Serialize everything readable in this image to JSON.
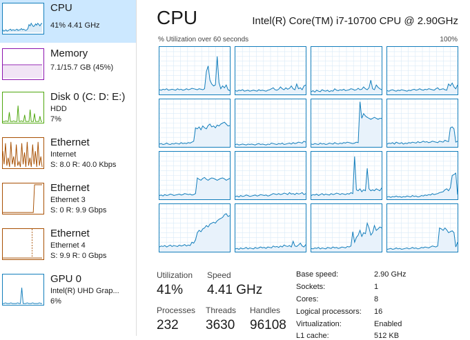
{
  "colors": {
    "selected_bg": "#cce8ff",
    "cpu": "#117dbb",
    "memory": "#8b12ae",
    "disk": "#4da60c",
    "network": "#a74f01",
    "gpu": "#117dbb"
  },
  "sidebar": {
    "items": [
      {
        "title": "CPU",
        "sub1": "41% 4.41 GHz",
        "sub2": "",
        "sub3": "",
        "selected": true,
        "graph": "cpu"
      },
      {
        "title": "Memory",
        "sub1": "7.1/15.7 GB (45%)",
        "sub2": "",
        "sub3": "",
        "selected": false,
        "graph": "memory"
      },
      {
        "title": "Disk 0 (C: D: E:)",
        "sub1": "HDD",
        "sub2": "7%",
        "sub3": "",
        "selected": false,
        "graph": "disk"
      },
      {
        "title": "Ethernet",
        "sub1": "Internet",
        "sub2": "S: 8.0 R: 40.0 Kbps",
        "sub3": "",
        "selected": false,
        "graph": "net1"
      },
      {
        "title": "Ethernet",
        "sub1": "Ethernet 3",
        "sub2": "S: 0 R: 9.9 Gbps",
        "sub3": "",
        "selected": false,
        "graph": "net2"
      },
      {
        "title": "Ethernet",
        "sub1": "Ethernet 4",
        "sub2": "S: 9.9 R: 0 Gbps",
        "sub3": "",
        "selected": false,
        "graph": "net3"
      },
      {
        "title": "GPU 0",
        "sub1": "Intel(R) UHD Grap...",
        "sub2": "6%",
        "sub3": "",
        "selected": false,
        "graph": "gpu"
      }
    ]
  },
  "main": {
    "title": "CPU",
    "model": "Intel(R) Core(TM) i7-10700 CPU @ 2.90GHz",
    "util_caption": "% Utilization over 60 seconds",
    "util_max": "100%",
    "cores": [
      {
        "values": [
          10,
          9,
          11,
          10,
          12,
          9,
          10,
          11,
          10,
          9,
          12,
          10,
          11,
          9,
          10,
          12,
          10,
          11,
          13,
          12,
          11,
          10,
          12,
          11,
          10,
          12,
          48,
          60,
          30,
          22,
          18,
          20,
          80,
          25,
          12,
          18,
          14,
          20,
          10,
          8
        ]
      },
      {
        "values": [
          8,
          7,
          9,
          8,
          10,
          7,
          8,
          9,
          7,
          8,
          9,
          8,
          7,
          10,
          8,
          9,
          8,
          7,
          9,
          10,
          12,
          14,
          10,
          9,
          11,
          16,
          12,
          10,
          14,
          11,
          13,
          18,
          12,
          10,
          22,
          12,
          14,
          10,
          18,
          20
        ]
      },
      {
        "values": [
          6,
          8,
          5,
          9,
          7,
          6,
          10,
          8,
          7,
          9,
          6,
          8,
          7,
          12,
          9,
          8,
          10,
          9,
          11,
          8,
          9,
          10,
          12,
          11,
          9,
          10,
          13,
          10,
          11,
          16,
          12,
          10,
          14,
          30,
          12,
          10,
          20,
          15,
          12,
          10
        ]
      },
      {
        "values": [
          8,
          7,
          9,
          10,
          8,
          7,
          9,
          8,
          10,
          9,
          8,
          7,
          9,
          8,
          10,
          11,
          9,
          10,
          12,
          10,
          9,
          11,
          10,
          12,
          11,
          10,
          9,
          12,
          14,
          10,
          11,
          12,
          10,
          9,
          22,
          18,
          24,
          16,
          12,
          20
        ]
      },
      {
        "values": [
          6,
          7,
          5,
          6,
          8,
          6,
          5,
          7,
          6,
          8,
          7,
          6,
          9,
          7,
          8,
          7,
          9,
          8,
          10,
          12,
          40,
          38,
          42,
          36,
          44,
          40,
          38,
          45,
          48,
          42,
          44,
          40,
          46,
          44,
          48,
          50,
          52,
          48,
          44,
          45
        ]
      },
      {
        "values": [
          5,
          6,
          4,
          5,
          6,
          5,
          4,
          6,
          5,
          6,
          5,
          4,
          6,
          7,
          5,
          6,
          5,
          4,
          6,
          5,
          8,
          7,
          6,
          5,
          7,
          6,
          8,
          5,
          6,
          7,
          8,
          6,
          9,
          7,
          8,
          10,
          9,
          8,
          12,
          10
        ]
      },
      {
        "values": [
          6,
          5,
          7,
          6,
          5,
          8,
          6,
          7,
          5,
          6,
          8,
          7,
          6,
          9,
          7,
          6,
          8,
          7,
          9,
          8,
          10,
          9,
          8,
          7,
          8,
          10,
          9,
          95,
          60,
          70,
          65,
          62,
          60,
          58,
          60,
          62,
          60,
          58,
          60,
          60
        ]
      },
      {
        "values": [
          6,
          8,
          7,
          9,
          6,
          10,
          8,
          7,
          9,
          6,
          8,
          7,
          9,
          8,
          10,
          9,
          8,
          11,
          9,
          10,
          12,
          10,
          11,
          9,
          10,
          12,
          11,
          10,
          9,
          12,
          11,
          10,
          14,
          12,
          11,
          40,
          42,
          38,
          10,
          12
        ]
      },
      {
        "values": [
          8,
          9,
          7,
          10,
          8,
          9,
          11,
          10,
          8,
          9,
          10,
          11,
          9,
          10,
          12,
          11,
          10,
          11,
          9,
          10,
          12,
          45,
          42,
          40,
          44,
          46,
          42,
          40,
          43,
          45,
          44,
          42,
          40,
          42,
          44,
          45,
          43,
          40,
          42,
          44
        ]
      },
      {
        "values": [
          6,
          7,
          5,
          8,
          6,
          7,
          9,
          8,
          6,
          7,
          8,
          9,
          7,
          8,
          10,
          9,
          8,
          9,
          7,
          8,
          10,
          12,
          11,
          10,
          12,
          10,
          11,
          13,
          12,
          10,
          14,
          11,
          12,
          10,
          13,
          11,
          12,
          14,
          10,
          12
        ]
      },
      {
        "values": [
          8,
          10,
          9,
          11,
          8,
          10,
          12,
          9,
          11,
          10,
          9,
          12,
          10,
          11,
          13,
          12,
          10,
          12,
          11,
          10,
          12,
          11,
          14,
          12,
          90,
          20,
          18,
          22,
          16,
          20,
          18,
          65,
          22,
          18,
          20,
          18,
          22,
          20,
          18,
          24
        ]
      },
      {
        "values": [
          5,
          6,
          4,
          6,
          5,
          7,
          5,
          6,
          4,
          6,
          5,
          7,
          6,
          5,
          8,
          6,
          7,
          5,
          6,
          8,
          7,
          9,
          8,
          10,
          9,
          12,
          10,
          11,
          12,
          14,
          15,
          16,
          20,
          22,
          18,
          24,
          50,
          52,
          55,
          10
        ]
      },
      {
        "values": [
          10,
          12,
          11,
          13,
          10,
          12,
          14,
          11,
          13,
          12,
          11,
          14,
          12,
          13,
          15,
          12,
          14,
          13,
          20,
          18,
          25,
          40,
          45,
          42,
          48,
          50,
          55,
          52,
          58,
          60,
          62,
          60,
          65,
          68,
          70,
          72,
          78,
          80,
          74,
          76
        ]
      },
      {
        "values": [
          6,
          7,
          5,
          8,
          6,
          7,
          9,
          6,
          8,
          7,
          6,
          9,
          7,
          8,
          10,
          8,
          9,
          7,
          10,
          9,
          8,
          12,
          10,
          11,
          9,
          12,
          10,
          14,
          12,
          11,
          13,
          10,
          22,
          12,
          11,
          14,
          18,
          12,
          10,
          15
        ]
      },
      {
        "values": [
          7,
          6,
          8,
          7,
          9,
          6,
          8,
          7,
          6,
          9,
          8,
          7,
          10,
          8,
          9,
          7,
          8,
          10,
          9,
          8,
          11,
          10,
          12,
          42,
          20,
          30,
          35,
          45,
          32,
          40,
          38,
          60,
          50,
          35,
          40,
          55,
          45,
          48,
          52,
          50
        ]
      },
      {
        "values": [
          5,
          6,
          7,
          5,
          6,
          8,
          6,
          7,
          5,
          6,
          7,
          8,
          6,
          7,
          9,
          7,
          8,
          6,
          7,
          9,
          8,
          10,
          9,
          8,
          10,
          12,
          11,
          10,
          12,
          50,
          48,
          45,
          50,
          46,
          40,
          42,
          44,
          40,
          10,
          20
        ]
      }
    ]
  },
  "stats": {
    "utilization_label": "Utilization",
    "utilization_value": "41%",
    "speed_label": "Speed",
    "speed_value": "4.41 GHz",
    "processes_label": "Processes",
    "processes_value": "232",
    "threads_label": "Threads",
    "threads_value": "3630",
    "handles_label": "Handles",
    "handles_value": "96108"
  },
  "props": [
    {
      "label": "Base speed:",
      "value": "2.90 GHz"
    },
    {
      "label": "Sockets:",
      "value": "1"
    },
    {
      "label": "Cores:",
      "value": "8"
    },
    {
      "label": "Logical processors:",
      "value": "16"
    },
    {
      "label": "Virtualization:",
      "value": "Enabled"
    },
    {
      "label": "L1 cache:",
      "value": "512 KB"
    }
  ]
}
